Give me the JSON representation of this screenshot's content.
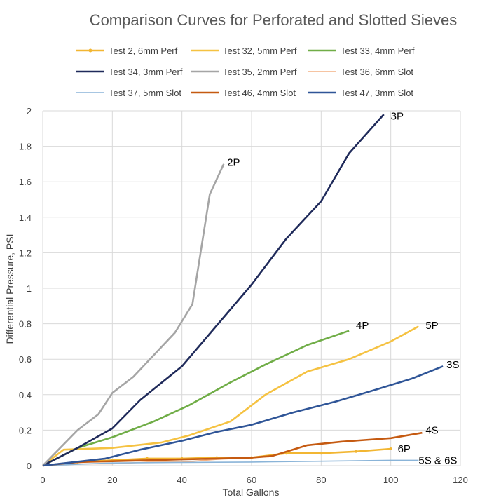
{
  "chart_data": {
    "type": "line",
    "title": "Comparison Curves for Perforated and Slotted Sieves",
    "xlabel": "Total Gallons",
    "ylabel": "Differential Pressure, PSI",
    "xlim": [
      0,
      120
    ],
    "ylim": [
      0,
      2
    ],
    "x_ticks": [
      "0",
      "20",
      "40",
      "60",
      "80",
      "100",
      "120"
    ],
    "y_ticks": [
      "0",
      "0.2",
      "0.4",
      "0.6",
      "0.8",
      "1",
      "1.2",
      "1.4",
      "1.6",
      "1.8",
      "2"
    ],
    "grid": true,
    "legend_position": "top",
    "series": [
      {
        "name": "Test 2, 6mm Perf",
        "color": "#f2b632",
        "marker": "dot",
        "x": [
          0,
          10,
          20,
          30,
          40,
          50,
          60,
          70,
          80,
          90,
          100
        ],
        "y": [
          0,
          0.02,
          0.03,
          0.04,
          0.04,
          0.045,
          0.045,
          0.07,
          0.07,
          0.08,
          0.095
        ]
      },
      {
        "name": "Test 32, 5mm Perf",
        "color": "#f5c242",
        "x": [
          0,
          6,
          20,
          34,
          42,
          54,
          64,
          76,
          88,
          100,
          108
        ],
        "y": [
          0,
          0.09,
          0.1,
          0.13,
          0.17,
          0.25,
          0.4,
          0.53,
          0.6,
          0.7,
          0.785
        ]
      },
      {
        "name": "Test 33, 4mm Perf",
        "color": "#70ad47",
        "x": [
          0,
          10,
          20,
          32,
          42,
          54,
          64,
          76,
          88
        ],
        "y": [
          0,
          0.1,
          0.16,
          0.25,
          0.34,
          0.47,
          0.57,
          0.68,
          0.76
        ]
      },
      {
        "name": "Test 34, 3mm Perf",
        "color": "#1f2a5a",
        "x": [
          0,
          10,
          20,
          28,
          40,
          50,
          60,
          70,
          80,
          88,
          98
        ],
        "y": [
          0,
          0.1,
          0.21,
          0.37,
          0.56,
          0.79,
          1.02,
          1.28,
          1.49,
          1.76,
          1.98
        ]
      },
      {
        "name": "Test 35, 2mm Perf",
        "color": "#a5a5a5",
        "x": [
          0,
          10,
          16,
          20,
          26,
          38,
          43,
          48,
          52
        ],
        "y": [
          0,
          0.2,
          0.29,
          0.41,
          0.5,
          0.75,
          0.91,
          1.53,
          1.7
        ]
      },
      {
        "name": "Test 36, 6mm Slot",
        "color": "#f4b183",
        "x": [
          0,
          10,
          20,
          30,
          40,
          50,
          60,
          65
        ],
        "y": [
          0,
          0.01,
          0.01,
          0.02,
          0.02,
          0.035,
          0.045,
          0.05
        ]
      },
      {
        "name": "Test 37, 5mm Slot",
        "color": "#8ab4d8",
        "x": [
          0,
          20,
          40,
          60,
          80,
          100,
          108
        ],
        "y": [
          0,
          0.015,
          0.018,
          0.02,
          0.025,
          0.03,
          0.03
        ]
      },
      {
        "name": "Test 46, 4mm Slot",
        "color": "#c55a11",
        "x": [
          0,
          10,
          20,
          30,
          40,
          50,
          60,
          66,
          76,
          86,
          100,
          109
        ],
        "y": [
          0,
          0.02,
          0.025,
          0.03,
          0.035,
          0.04,
          0.045,
          0.055,
          0.115,
          0.135,
          0.155,
          0.185
        ]
      },
      {
        "name": "Test 47, 3mm Slot",
        "color": "#2f5597",
        "x": [
          0,
          18,
          28,
          40,
          50,
          60,
          72,
          84,
          96,
          106,
          115
        ],
        "y": [
          0,
          0.04,
          0.09,
          0.14,
          0.19,
          0.23,
          0.3,
          0.36,
          0.43,
          0.49,
          0.56
        ]
      }
    ],
    "annotations": [
      {
        "text": "2P",
        "x": 53,
        "y": 1.71
      },
      {
        "text": "3P",
        "x": 100,
        "y": 1.97
      },
      {
        "text": "4P",
        "x": 90,
        "y": 0.79
      },
      {
        "text": "5P",
        "x": 110,
        "y": 0.79
      },
      {
        "text": "3S",
        "x": 116,
        "y": 0.57
      },
      {
        "text": "4S",
        "x": 110,
        "y": 0.2
      },
      {
        "text": "6P",
        "x": 102,
        "y": 0.095
      },
      {
        "text": "5S & 6S",
        "x": 108,
        "y": 0.03
      }
    ]
  }
}
